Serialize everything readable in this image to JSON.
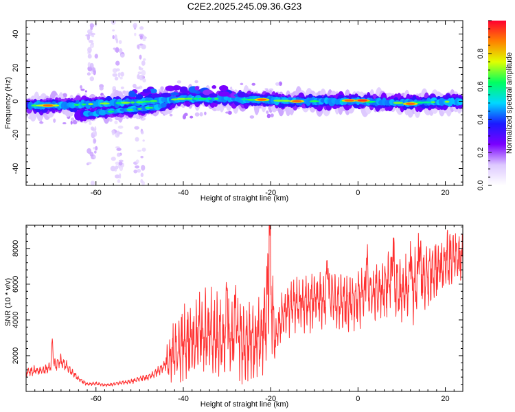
{
  "figure": {
    "title": "C2E2.2025.245.09.36.G23"
  },
  "chart_data": [
    {
      "type": "heatmap",
      "title": "C2E2.2025.245.09.36.G23",
      "xlabel": "Height of straight line (km)",
      "ylabel": "Frequency (Hz)",
      "xlim": [
        -76,
        24
      ],
      "ylim": [
        -50,
        48
      ],
      "x_ticks": [
        "-60",
        "-40",
        "-20",
        "0",
        "20"
      ],
      "x_tick_values": [
        -60,
        -40,
        -20,
        0,
        20
      ],
      "y_ticks": [
        "-40",
        "-20",
        "0",
        "20",
        "40"
      ],
      "y_tick_values": [
        -40,
        -20,
        0,
        20,
        40
      ],
      "colorbar": {
        "label": "Normalized spectral amplitude",
        "range": [
          0,
          1
        ],
        "ticks": [
          "0.0",
          "0.2",
          "0.4",
          "0.6",
          "0.8"
        ],
        "tick_values": [
          0.0,
          0.2,
          0.4,
          0.6,
          0.8
        ],
        "colormap": [
          "#ffffff",
          "#ddc8ff",
          "#7a00ff",
          "#1a1aff",
          "#00d8ff",
          "#00ff60",
          "#e0ff00",
          "#ff8000",
          "#ff0030"
        ]
      },
      "ridges": [
        {
          "name": "main",
          "points": [
            [
              -76,
              -2.5
            ],
            [
              -68,
              -2.5
            ],
            [
              -60,
              -1.5
            ],
            [
              -50,
              -0.5
            ],
            [
              -40,
              1.5
            ],
            [
              -30,
              1.5
            ],
            [
              -20,
              0.5
            ],
            [
              -10,
              0
            ],
            [
              0,
              0
            ],
            [
              10,
              -1
            ],
            [
              24,
              0
            ]
          ]
        },
        {
          "name": "lower",
          "points": [
            [
              -64,
              -8
            ],
            [
              -56,
              -6
            ],
            [
              -48,
              -4
            ],
            [
              -42,
              -1
            ]
          ]
        }
      ],
      "hotspots": [
        {
          "x": -71,
          "f": -2.5,
          "amp": 0.9
        },
        {
          "x": -22,
          "f": 1,
          "amp": 0.9
        },
        {
          "x": -14,
          "f": 0,
          "amp": 0.9
        },
        {
          "x": -2,
          "f": 0.5,
          "amp": 0.9
        },
        {
          "x": 1,
          "f": 0.5,
          "amp": 0.95
        },
        {
          "x": 12,
          "f": -1.5,
          "amp": 0.9
        }
      ],
      "scatter_columns": [
        -61,
        -55,
        -50
      ]
    },
    {
      "type": "line",
      "xlabel": "Height of straight line (km)",
      "ylabel": "SNR (10 * v/v)",
      "xlim": [
        -76,
        24
      ],
      "ylim": [
        0,
        9300
      ],
      "color": "#ff3030",
      "x_ticks": [
        "-60",
        "-40",
        "-20",
        "0",
        "20"
      ],
      "x_tick_values": [
        -60,
        -40,
        -20,
        0,
        20
      ],
      "y_ticks": [
        "2000",
        "4000",
        "6000",
        "8000"
      ],
      "y_tick_values": [
        2000,
        4000,
        6000,
        8000
      ],
      "envelope": [
        [
          -76,
          1100
        ],
        [
          -72,
          1200
        ],
        [
          -70,
          1400
        ],
        [
          -68,
          1700
        ],
        [
          -66,
          1200
        ],
        [
          -64,
          700
        ],
        [
          -62,
          400
        ],
        [
          -60,
          450
        ],
        [
          -58,
          350
        ],
        [
          -56,
          400
        ],
        [
          -54,
          500
        ],
        [
          -52,
          550
        ],
        [
          -50,
          700
        ],
        [
          -48,
          800
        ],
        [
          -46,
          1100
        ],
        [
          -44,
          1500
        ],
        [
          -42,
          2200
        ],
        [
          -40,
          2700
        ],
        [
          -38,
          2800
        ],
        [
          -36,
          3300
        ],
        [
          -34,
          3200
        ],
        [
          -32,
          3000
        ],
        [
          -30,
          2800
        ],
        [
          -28,
          3000
        ],
        [
          -26,
          2800
        ],
        [
          -24,
          2800
        ],
        [
          -22,
          3000
        ],
        [
          -20,
          6000
        ],
        [
          -19,
          2800
        ],
        [
          -18,
          3800
        ],
        [
          -16,
          4800
        ],
        [
          -14,
          5000
        ],
        [
          -12,
          5000
        ],
        [
          -10,
          5200
        ],
        [
          -8,
          5000
        ],
        [
          -6,
          5400
        ],
        [
          -4,
          5000
        ],
        [
          -2,
          4800
        ],
        [
          0,
          5200
        ],
        [
          2,
          5600
        ],
        [
          4,
          5400
        ],
        [
          6,
          5800
        ],
        [
          8,
          6300
        ],
        [
          10,
          5500
        ],
        [
          12,
          5800
        ],
        [
          14,
          6300
        ],
        [
          16,
          6500
        ],
        [
          18,
          6800
        ],
        [
          20,
          7200
        ],
        [
          22,
          7500
        ],
        [
          24,
          7400
        ]
      ],
      "peaks": [
        {
          "x": -20.3,
          "y": 9300
        },
        {
          "x": -30,
          "y": 6700
        },
        {
          "x": -28,
          "y": 5400
        },
        {
          "x": -70,
          "y": 2950
        },
        {
          "x": 8,
          "y": 8500
        },
        {
          "x": 14,
          "y": 8700
        },
        {
          "x": -7,
          "y": 8000
        },
        {
          "x": 12,
          "y": 8400
        },
        {
          "x": 2,
          "y": 7800
        }
      ]
    }
  ]
}
